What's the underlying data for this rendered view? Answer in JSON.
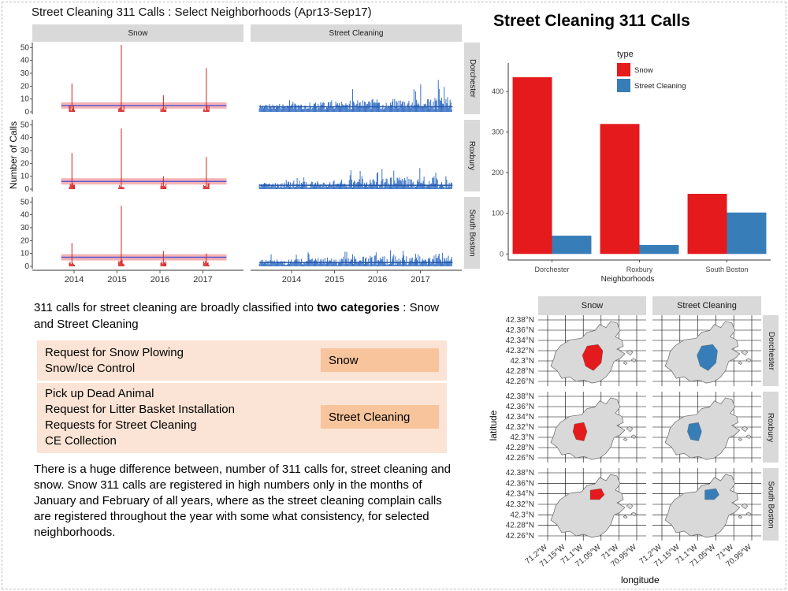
{
  "timeseries": {
    "title": "Street Cleaning 311 Calls : Select Neighborhoods (Apr13-Sep17)",
    "ylabel": "Number of Calls",
    "columns": [
      "Snow",
      "Street Cleaning"
    ],
    "rows": [
      "Dorchester",
      "Roxbury",
      "South Boston"
    ],
    "yticks": [
      "0",
      "10",
      "20",
      "30",
      "40",
      "50"
    ],
    "xticks": [
      "2014",
      "2015",
      "2016",
      "2017"
    ],
    "colors": {
      "snow": "#d62020",
      "street": "#3a72c4",
      "smooth_band": "#f2a0a0",
      "smooth_line": "#5a5ad8"
    }
  },
  "chart_data": [
    {
      "type": "line",
      "title": "Street Cleaning 311 Calls : Select Neighborhoods (Apr13-Sep17)",
      "ylabel": "Number of Calls",
      "ylim": [
        0,
        52
      ],
      "x": [
        "2013-12",
        "2015-02",
        "2016-01",
        "2017-02"
      ],
      "panels": [
        {
          "facet_col": "Snow",
          "facet_row": "Dorchester",
          "spikes": [
            22,
            52,
            13,
            34
          ],
          "baseline": 5
        },
        {
          "facet_col": "Snow",
          "facet_row": "Roxbury",
          "spikes": [
            28,
            47,
            10,
            25
          ],
          "baseline": 6
        },
        {
          "facet_col": "Snow",
          "facet_row": "South Boston",
          "spikes": [
            18,
            47,
            12,
            10
          ],
          "baseline": 7
        },
        {
          "facet_col": "Street Cleaning",
          "facet_row": "Dorchester",
          "typical_range": [
            2,
            28
          ],
          "baseline": 4
        },
        {
          "facet_col": "Street Cleaning",
          "facet_row": "Roxbury",
          "typical_range": [
            1,
            21
          ],
          "baseline": 3
        },
        {
          "facet_col": "Street Cleaning",
          "facet_row": "South Boston",
          "typical_range": [
            1,
            18
          ],
          "baseline": 3
        }
      ]
    },
    {
      "type": "bar",
      "title": "Street Cleaning 311 Calls",
      "xlabel": "Neighborhoods",
      "legend_title": "type",
      "legend_position": "top-right",
      "categories": [
        "Dorchester",
        "Roxbury",
        "South Boston"
      ],
      "series": [
        {
          "name": "Snow",
          "values": [
            435,
            320,
            148
          ],
          "color": "#e41a1c"
        },
        {
          "name": "Street Cleaning",
          "values": [
            45,
            22,
            102
          ],
          "color": "#377eb8"
        }
      ],
      "yticks": [
        0,
        100,
        200,
        300,
        400
      ],
      "ylim": [
        -15,
        470
      ],
      "grid": false
    }
  ],
  "bar_chart": {
    "title": "Street Cleaning 311 Calls",
    "xlabel": "Neighborhoods",
    "legend_title": "type",
    "legend": [
      "Snow",
      "Street Cleaning"
    ],
    "categories": [
      "Dorchester",
      "Roxbury",
      "South Boston"
    ],
    "yticks": [
      "0",
      "100",
      "200",
      "300",
      "400"
    ]
  },
  "text": {
    "intro_part1": "311 calls for street cleaning are broadly classified into ",
    "intro_bold": "two categories",
    "intro_part2": " : Snow and Street Cleaning",
    "snow_items": [
      "Request for Snow Plowing",
      "Snow/Ice Control"
    ],
    "snow_label": "Snow",
    "street_items": [
      "Pick up Dead Animal",
      "Request for Litter Basket Installation",
      "Requests for Street Cleaning",
      "CE Collection"
    ],
    "street_label": "Street Cleaning",
    "paragraph": "There is a huge difference between, number of 311 calls for, street cleaning  and snow. Snow 311 calls  are registered in high numbers only in the months of January and February of all years,   where as the street cleaning  complain calls are registered throughout the year with some what consistency, for selected neighborhoods."
  },
  "map": {
    "columns": [
      "Snow",
      "Street Cleaning"
    ],
    "rows": [
      "Dorchester",
      "Roxbury",
      "South Boston"
    ],
    "ylabel": "latitude",
    "xlabel": "longitude",
    "yticks": [
      "42.38°N",
      "42.36°N",
      "42.34°N",
      "42.32°N",
      "42.3°N",
      "42.28°N",
      "42.26°N"
    ],
    "xticks": [
      "71.2°W",
      "71.15°W",
      "71.1°W",
      "71.05°W",
      "71°W",
      "70.95°W"
    ],
    "colors": {
      "snow": "#e41a1c",
      "street": "#377eb8",
      "land": "#d9d9d9",
      "grid": "#000000"
    }
  }
}
